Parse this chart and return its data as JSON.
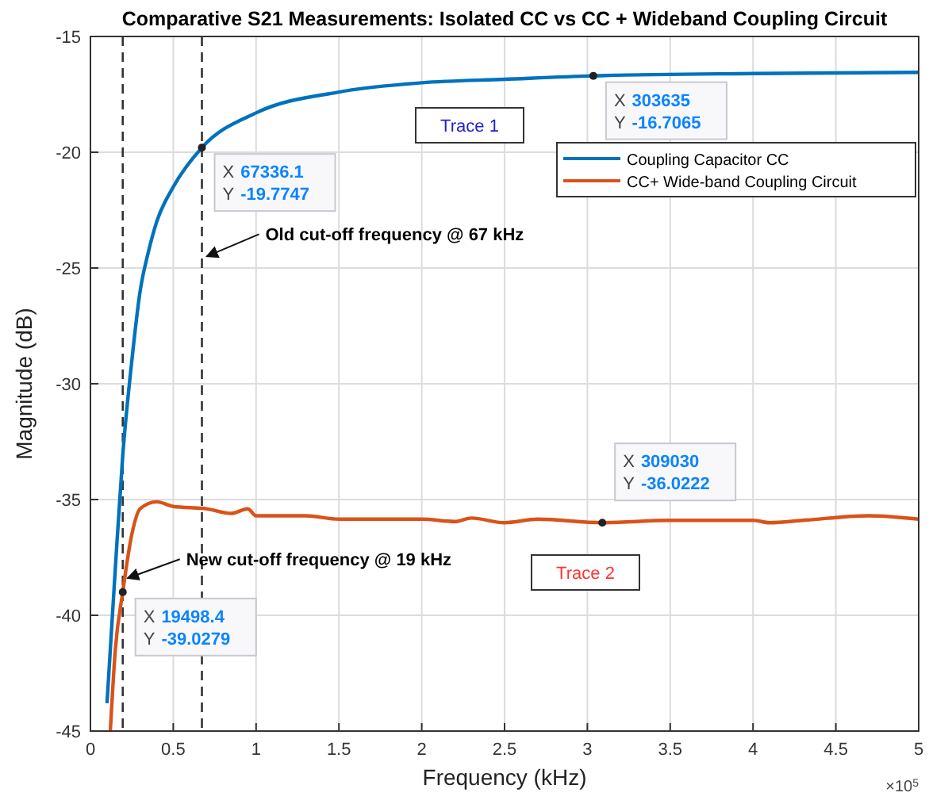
{
  "chart_data": {
    "type": "line",
    "title": "Comparative S21 Measurements: Isolated CC vs  CC + Wideband Coupling Circuit",
    "xlabel": "Frequency (kHz)",
    "ylabel": "Magnitude (dB)",
    "xlim": [
      0,
      5
    ],
    "xticks": [
      0,
      0.5,
      1,
      1.5,
      2,
      2.5,
      3,
      3.5,
      4,
      4.5,
      5
    ],
    "ylim": [
      -45,
      -15
    ],
    "yticks": [
      -45,
      -40,
      -35,
      -30,
      -25,
      -20,
      -15
    ],
    "grid": true,
    "legend": "top right",
    "line_style": "solid",
    "marker": "none",
    "series": [
      {
        "name": "Coupling Capacitor CC",
        "color": "#0072bd",
        "x": [
          0.1,
          0.15,
          0.195,
          0.25,
          0.3,
          0.35,
          0.4,
          0.5,
          0.673,
          1,
          1.5,
          2,
          2.5,
          3.036,
          4,
          5
        ],
        "values": [
          -43.8,
          -38,
          -33.1,
          -29,
          -26,
          -24.3,
          -23,
          -21.5,
          -19.8,
          -18.3,
          -17.4,
          -17.0,
          -16.85,
          -16.7,
          -16.6,
          -16.55
        ]
      },
      {
        "name": "CC+ Wide-band Coupling Circuit",
        "color": "#d95319",
        "x": [
          0.12,
          0.15,
          0.195,
          0.25,
          0.3,
          0.4,
          0.5,
          0.7,
          0.85,
          0.95,
          1,
          1.3,
          1.5,
          2,
          2.2,
          2.3,
          2.5,
          2.7,
          3.09,
          3.5,
          4,
          4.1,
          4.3,
          4.7,
          5
        ],
        "values": [
          -45,
          -41.5,
          -39.0,
          -36.5,
          -35.4,
          -35.1,
          -35.3,
          -35.4,
          -35.6,
          -35.4,
          -35.7,
          -35.7,
          -35.85,
          -35.85,
          -35.95,
          -35.8,
          -36.0,
          -35.85,
          -36.0,
          -35.9,
          -35.9,
          -36.0,
          -35.9,
          -35.7,
          -35.85
        ]
      }
    ],
    "ref_lines": [
      {
        "axis": "x",
        "value": 0.195,
        "line_style": "dashed",
        "color": "#333333"
      },
      {
        "axis": "x",
        "value": 0.673,
        "line_style": "dashed",
        "color": "#333333"
      }
    ],
    "annotations": [
      {
        "text": "X 67336.1\nY -19.7747",
        "x": 0.673,
        "y": -19.8
      },
      {
        "text": "X 303635\nY -16.7065",
        "x": 3.036,
        "y": -16.7
      },
      {
        "text": "X 19498.4\nY -39.0279",
        "x": 0.195,
        "y": -39.0
      },
      {
        "text": "X 309030\nY -36.0222",
        "x": 3.09,
        "y": -36.0
      },
      {
        "text": "Old cut-off frequency @ 67 kHz",
        "x": 0.673,
        "y": -24.5
      },
      {
        "text": "New cut-off frequency @ 19 kHz",
        "x": 0.195,
        "y": -38.4
      },
      "Trace 1",
      "Trace 2",
      "×10$^{5}$"
    ]
  }
}
